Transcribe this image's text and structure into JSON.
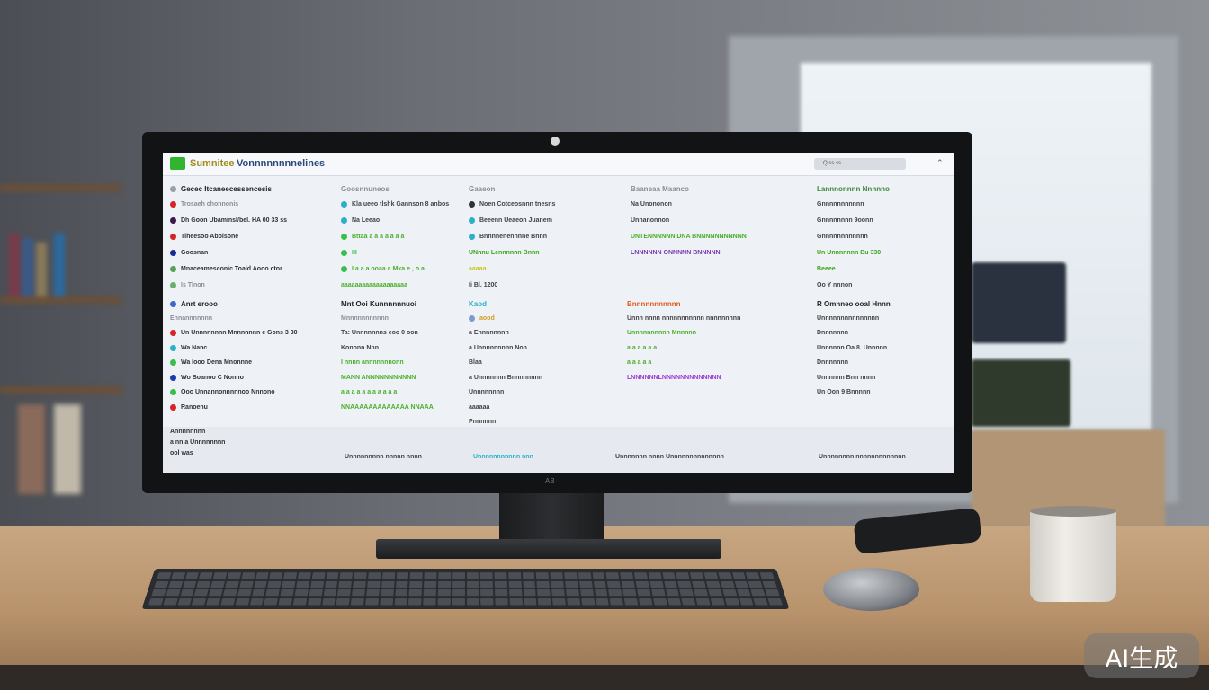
{
  "screen": {
    "app_title": "Sumnitee",
    "app_subtitle": "Vonnnnnnnnelines",
    "search_text": "Q  ss  ss",
    "collapse_icon": "chevron-up-icon",
    "panels": [
      {
        "lines": [
          {
            "text": "Gecec Itcaneecessencesis",
            "color": "#222222",
            "dot": "#9aa0a8"
          },
          {
            "text": "Trosaeh chonnonis",
            "color": "#8a8f98",
            "dot": "#d42424"
          },
          {
            "text": "Dh Goon Ubaminsl/bel. HA 00 33 ss",
            "color": "#333333",
            "dot": "#3a1a4a"
          },
          {
            "text": "Tiheesoo Aboisone",
            "color": "#333333",
            "dot": "#d42424"
          },
          {
            "text": "Goosnan",
            "color": "#333333",
            "dot": "#1a2a9a"
          },
          {
            "text": "Mnaceamesconic Toaid Aooo ctor",
            "color": "#333333",
            "dot": "#5aa05a"
          },
          {
            "text": "Is Tlnon",
            "color": "#8a8f98",
            "dot": "#6ab06a"
          }
        ]
      },
      {
        "lines": [
          {
            "text": "Goosnnuneos",
            "color": "#8a8f98",
            "dot": ""
          },
          {
            "text": "Kla ueeo tlshk Gannson 8 anbos",
            "color": "#444444",
            "dot": "#2ab0c8"
          },
          {
            "text": "Na Leeao",
            "color": "#444444",
            "dot": "#2ab0c8"
          },
          {
            "text": "Bttaa a a a a a a a",
            "color": "#4ab02a",
            "dot": "#3ac04a"
          },
          {
            "text": "III",
            "color": "#3ac04a",
            "dot": "#3ac04a"
          },
          {
            "text": "I a a a ooaa a Mka e , o a",
            "color": "#4ab02a",
            "dot": "#3ac04a"
          },
          {
            "text": "aaaaaaaaaaaaaaaaaaa",
            "color": "#4ab02a",
            "dot": ""
          }
        ]
      },
      {
        "lines": [
          {
            "text": "Gaaeon",
            "color": "#8a8f98",
            "dot": ""
          },
          {
            "text": "Noen Cotceosnnn tnesns",
            "color": "#444444",
            "dot": "#333333"
          },
          {
            "text": "Beeenn Ueaeon Juanem",
            "color": "#444444",
            "dot": "#2ab0c8"
          },
          {
            "text": "Bnnnnenennnne Bnnn",
            "color": "#444444",
            "dot": "#2ab0c8"
          },
          {
            "text": "UNnnu Lennnnnn Bnnn",
            "color": "#3aa81a",
            "dot": ""
          },
          {
            "text": "aaaaa",
            "color": "#c8c21a",
            "dot": ""
          },
          {
            "text": "Ii Bl. 1200",
            "color": "#444444",
            "dot": ""
          }
        ]
      },
      {
        "lines": [
          {
            "text": "Baaneaa Maanco",
            "color": "#8a8f98",
            "dot": ""
          },
          {
            "text": "Na Unononon",
            "color": "#444444",
            "dot": ""
          },
          {
            "text": "Unnanonnon",
            "color": "#444444",
            "dot": ""
          },
          {
            "text": "UNTENNNNNN DNA  BNNNNNNNNNNN",
            "color": "#4ab02a",
            "dot": ""
          },
          {
            "text": "LNNNNNN ONNNNN BNNNNN",
            "color": "#7a3ab0",
            "dot": ""
          }
        ]
      },
      {
        "lines": [
          {
            "text": "Lannnonnnn Nnnnno",
            "color": "#3a8a3a",
            "dot": ""
          },
          {
            "text": "Gnnnnnnnnnnn",
            "color": "#444444",
            "dot": ""
          },
          {
            "text": "Gnnnnnnnn 9oonn",
            "color": "#444444",
            "dot": ""
          },
          {
            "text": "Gnnnnnnnnnnnn",
            "color": "#444444",
            "dot": ""
          },
          {
            "text": "Un Unnnnnnn Bu 330",
            "color": "#3aa81a",
            "dot": ""
          },
          {
            "text": "Beeee",
            "color": "#3aa81a",
            "dot": ""
          },
          {
            "text": "Oo Y nnnon",
            "color": "#444444",
            "dot": ""
          }
        ]
      }
    ],
    "panels2": [
      {
        "lines": [
          {
            "text": "Anrt erooo",
            "color": "#222222",
            "dot": "#3a6ad0"
          },
          {
            "text": "Ennannnnnnn",
            "color": "#8a8f98",
            "dot": ""
          },
          {
            "text": "Un Unnnnnnnn Mnnnnnnn e Gons 3 30",
            "color": "#333333",
            "dot": "#d42424"
          },
          {
            "text": "Wa Nanc",
            "color": "#333333",
            "dot": "#2ab0c8"
          },
          {
            "text": "Wa Iooo Dena Mnonnne",
            "color": "#333333",
            "dot": "#3ac04a"
          },
          {
            "text": "Wo Boanoo C Nonno",
            "color": "#333333",
            "dot": "#1a3ab0"
          },
          {
            "text": "Ooo Unnannonnnnnoo Nnnono",
            "color": "#333333",
            "dot": "#3ac04a"
          },
          {
            "text": "Ranoenu",
            "color": "#333333",
            "dot": "#d42424"
          }
        ]
      },
      {
        "lines": [
          {
            "text": "Mnt Ooi Kunnnnnnuoi",
            "color": "#222222",
            "dot": ""
          },
          {
            "text": "Mnnnnnnnnnnn",
            "color": "#8a8f98",
            "dot": ""
          },
          {
            "text": "Ta: Unnnnnnns eoo 0 oon",
            "color": "#444444",
            "dot": ""
          },
          {
            "text": "Kononn Nnn",
            "color": "#444444",
            "dot": ""
          },
          {
            "text": "I nnnn annnnnnnonn",
            "color": "#4ab02a",
            "dot": ""
          },
          {
            "text": "MANN ANNNNNNNNNNN",
            "color": "#4ab02a",
            "dot": ""
          },
          {
            "text": "a a a a a a a a a a a",
            "color": "#4ab02a",
            "dot": ""
          },
          {
            "text": "NNAAAAAAAAAAAAA NNAAA",
            "color": "#4ab02a",
            "dot": ""
          }
        ]
      },
      {
        "lines": [
          {
            "text": "Kaod",
            "color": "#2ab0c8",
            "dot": ""
          },
          {
            "text": "aood",
            "color": "#d0a020",
            "dot": "#7a9ad0"
          },
          {
            "text": "a Ennnnnnnn",
            "color": "#444444",
            "dot": ""
          },
          {
            "text": "a Unnnnnnnnn Non",
            "color": "#444444",
            "dot": ""
          },
          {
            "text": "Blaa",
            "color": "#444444",
            "dot": ""
          },
          {
            "text": "a Unnnnnnn Bnnnnnnnn",
            "color": "#444444",
            "dot": ""
          },
          {
            "text": "Unnnnnnnn",
            "color": "#444444",
            "dot": ""
          },
          {
            "text": "aaaaaa",
            "color": "#444444",
            "dot": ""
          },
          {
            "text": "Pnnnnnn",
            "color": "#444444",
            "dot": ""
          }
        ]
      },
      {
        "lines": [
          {
            "text": "Bnnnnnnnnnnn",
            "color": "#e05a1a",
            "dot": ""
          },
          {
            "text": "Unnn nnnn nnnnnnnnnnn nnnnnnnnn",
            "color": "#444444",
            "dot": ""
          },
          {
            "text": "Unnnnnnnnnn Mnnnnn",
            "color": "#4ab02a",
            "dot": ""
          },
          {
            "text": "a a a a a a",
            "color": "#4ab02a",
            "dot": ""
          },
          {
            "text": "a a a a a",
            "color": "#4ab02a",
            "dot": ""
          },
          {
            "text": "LNNNNNNLNNNNNNNNNNNNN",
            "color": "#9a3ad0",
            "dot": ""
          }
        ]
      },
      {
        "lines": [
          {
            "text": "R Omnneo ooal Hnnn",
            "color": "#222222",
            "dot": ""
          },
          {
            "text": "Unnnnnnnnnnnnnnn",
            "color": "#444444",
            "dot": ""
          },
          {
            "text": "Dnnnnnnn",
            "color": "#444444",
            "dot": ""
          },
          {
            "text": "Unnnnnn Oa 8. Unnnnn",
            "color": "#444444",
            "dot": ""
          },
          {
            "text": "Dnnnnnnn",
            "color": "#444444",
            "dot": ""
          },
          {
            "text": "Unnnnnn Bnn nnnn",
            "color": "#444444",
            "dot": ""
          },
          {
            "text": "Un Oon 9 Bnnnnn",
            "color": "#444444",
            "dot": ""
          }
        ]
      }
    ],
    "bottom": {
      "left": [
        "Annnnnnnn",
        "a nn a Unnnnnnnn",
        "ool was"
      ],
      "items": [
        "Unnnnnnnnn nnnnn nnnn",
        "Unnnnnnnnnnn nnn",
        "Unnnnnnn nnnn Unnnnnnnnnnnnnn",
        "Unnnnnnnn nnnnnnnnnnnnn"
      ]
    }
  },
  "monitor_brand": "AB",
  "watermark": "AI生成"
}
